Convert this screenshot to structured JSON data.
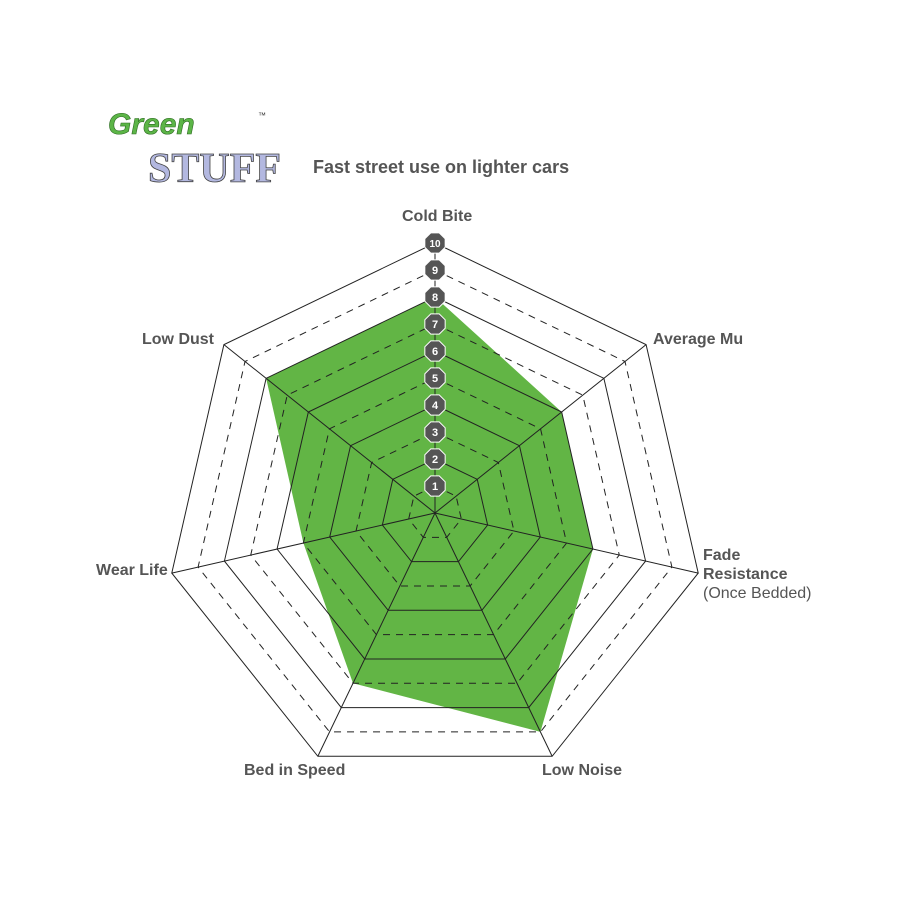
{
  "logo": {
    "line1": "Green",
    "line2": "STUFF",
    "tm": "™",
    "colors": {
      "green": "#5cb547",
      "stuff": "#b3b8e0"
    }
  },
  "chart_data": {
    "type": "radar",
    "title": "Fast street use on lighter cars",
    "categories": [
      "Cold Bite",
      "Average Mu",
      "Fade Resistance (Once Bedded)",
      "Low Noise",
      "Bed in Speed",
      "Wear Life",
      "Low Dust"
    ],
    "values": [
      8,
      6,
      6,
      9,
      7,
      5,
      8
    ],
    "range": [
      0,
      10
    ],
    "tick_labels": [
      "1",
      "2",
      "3",
      "4",
      "5",
      "6",
      "7",
      "8",
      "9",
      "10"
    ],
    "fill_color": "#62b545",
    "grid": true
  },
  "labels": {
    "cold_bite": "Cold Bite",
    "average_mu": "Average Mu",
    "fade_1": "Fade",
    "fade_2": "Resistance",
    "fade_3": "(Once Bedded)",
    "low_noise": "Low Noise",
    "bed_in_speed": "Bed in Speed",
    "wear_life": "Wear Life",
    "low_dust": "Low Dust"
  }
}
